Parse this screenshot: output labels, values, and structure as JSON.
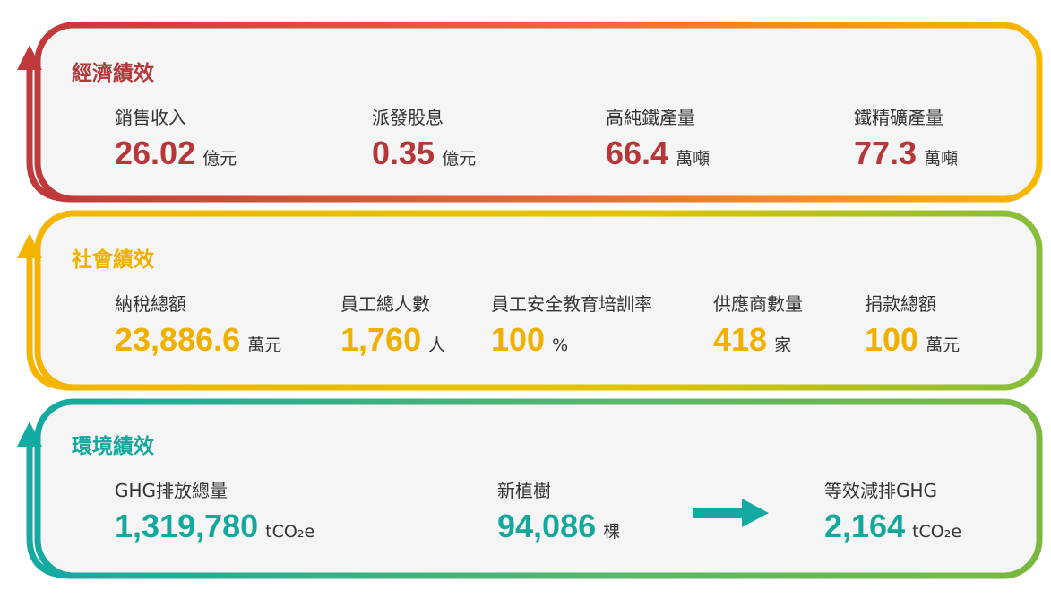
{
  "sections": [
    {
      "title": "經濟績效",
      "items": [
        {
          "label": "銷售收入",
          "value": "26.02",
          "unit": "億元"
        },
        {
          "label": "派發股息",
          "value": "0.35",
          "unit": "億元"
        },
        {
          "label": "高純鐵產量",
          "value": "66.4",
          "unit": "萬噸"
        },
        {
          "label": "鐵精礦產量",
          "value": "77.3",
          "unit": "萬噸"
        }
      ]
    },
    {
      "title": "社會績效",
      "items": [
        {
          "label": "納稅總額",
          "value": "23,886.6",
          "unit": "萬元"
        },
        {
          "label": "員工總人數",
          "value": "1,760",
          "unit": "人"
        },
        {
          "label": "員工安全教育培訓率",
          "value": "100",
          "unit": "%"
        },
        {
          "label": "供應商數量",
          "value": "418",
          "unit": "家"
        },
        {
          "label": "捐款總額",
          "value": "100",
          "unit": "萬元"
        }
      ]
    },
    {
      "title": "環境績效",
      "items": [
        {
          "label": "GHG排放總量",
          "value": "1,319,780",
          "unit": "tCO₂e"
        },
        {
          "label": "新植樹",
          "value": "94,086",
          "unit": "棵"
        },
        {
          "label": "等效減排GHG",
          "value": "2,164",
          "unit": "tCO₂e"
        }
      ]
    }
  ]
}
